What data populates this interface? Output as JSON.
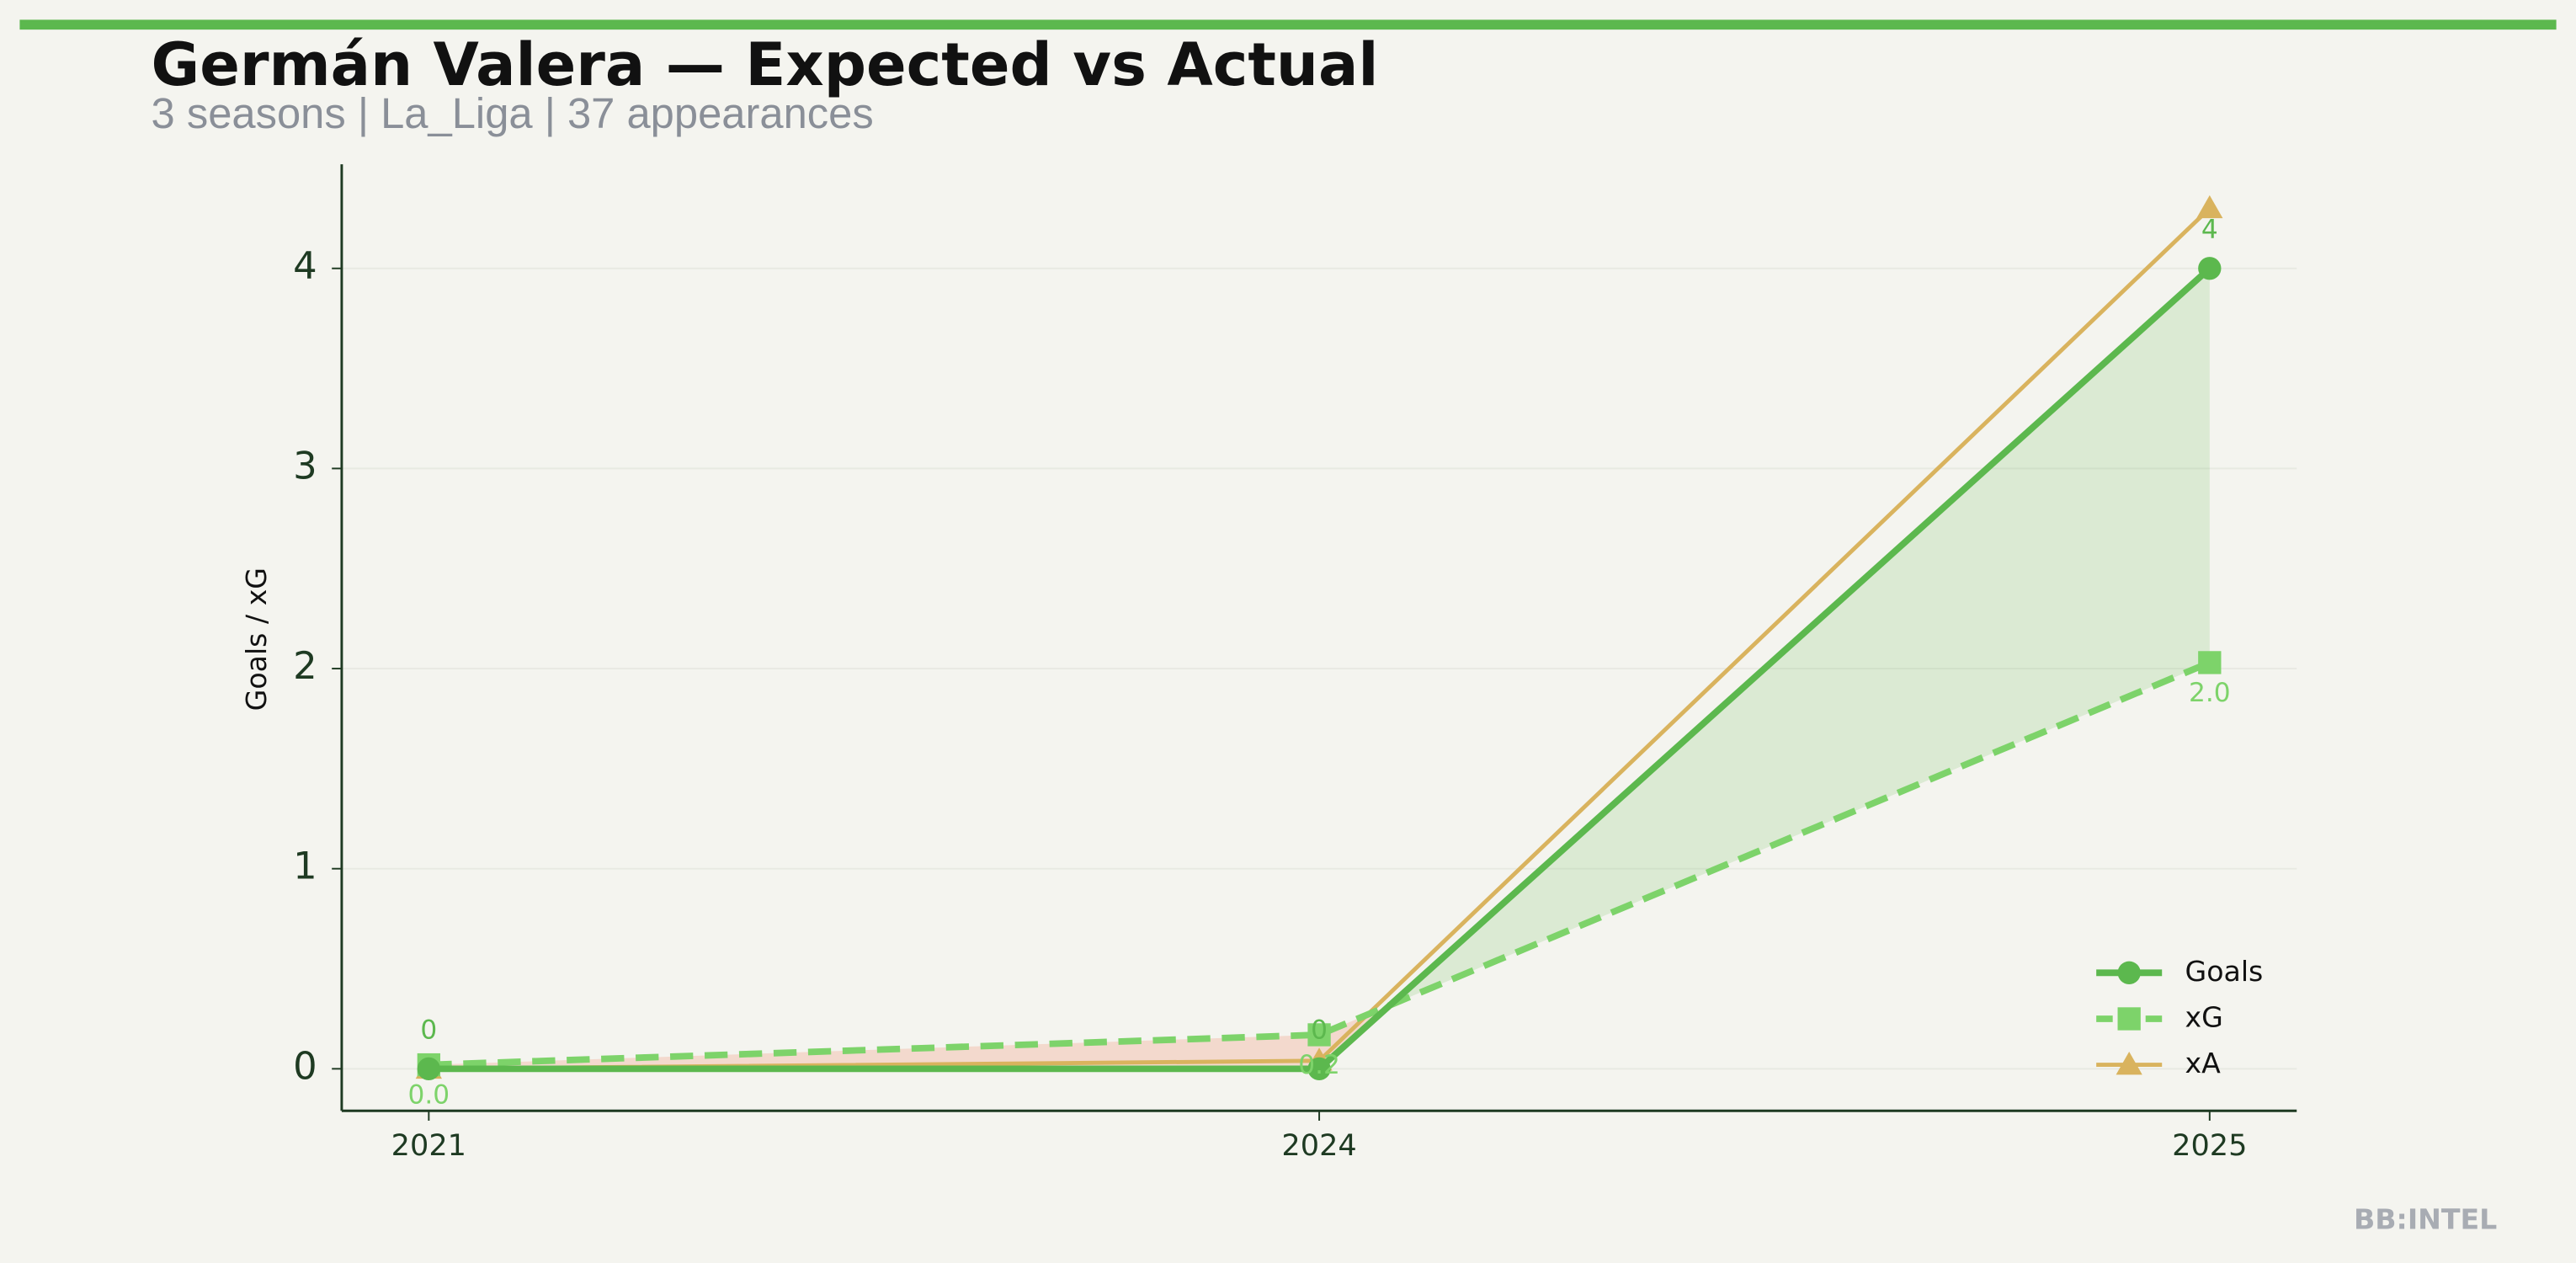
{
  "chart_data": {
    "type": "line",
    "title": "Germán Valera — Expected vs Actual",
    "subtitle": "3 seasons | La_Liga | 37 appearances",
    "y_label": "Goals / xG",
    "watermark": "BB:INTEL",
    "categories": [
      "2021",
      "2024",
      "2025"
    ],
    "series": [
      {
        "name": "Goals",
        "color": "#5cb84e",
        "values": [
          0,
          0,
          4
        ]
      },
      {
        "name": "xG",
        "color": "#7dd36a",
        "values": [
          0.02,
          0.17,
          2.03
        ],
        "value_labels": [
          "0.0",
          "0.2",
          "2.0"
        ]
      },
      {
        "name": "xA",
        "color": "#d9b35e",
        "values": [
          0.0,
          0.04,
          4.3
        ]
      }
    ],
    "ylim": [
      -0.21,
      4.52
    ],
    "yticks": [
      0,
      1,
      2,
      3,
      4
    ],
    "grid": true,
    "legend": "lower right"
  }
}
